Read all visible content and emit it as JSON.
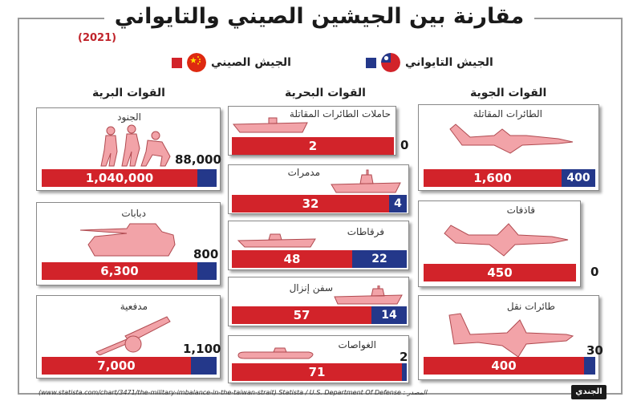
{
  "title": "مقارنة بين الجيشين الصيني والتايواني",
  "year": "(2021)",
  "legend": {
    "china": "الجيش الصيني",
    "taiwan": "الجيش التايواني"
  },
  "colors": {
    "china": "#d2232a",
    "taiwan": "#24388a",
    "silhouette": "#f2a3a8"
  },
  "sections": {
    "air": "القوات الجوية",
    "navy": "القوات البحرية",
    "land": "القوات البرية"
  },
  "chart_data": {
    "type": "bar",
    "series": [
      {
        "name": "الجيش الصيني"
      },
      {
        "name": "الجيش التايواني"
      }
    ],
    "items": [
      {
        "group": "القوات الجوية",
        "label": "الطائرات المقاتلة",
        "china": "1,600",
        "taiwan": "400",
        "icon": "fighter-jet-icon"
      },
      {
        "group": "القوات الجوية",
        "label": "قاذفات",
        "china": "450",
        "taiwan": "0",
        "icon": "bomber-icon"
      },
      {
        "group": "القوات الجوية",
        "label": "طائرات نقل",
        "china": "400",
        "taiwan": "30",
        "icon": "transport-plane-icon"
      },
      {
        "group": "القوات البحرية",
        "label": "حاملات الطائرات المقاتلة",
        "china": "2",
        "taiwan": "0",
        "icon": "aircraft-carrier-icon"
      },
      {
        "group": "القوات البحرية",
        "label": "مدمرات",
        "china": "32",
        "taiwan": "4",
        "icon": "destroyer-icon"
      },
      {
        "group": "القوات البحرية",
        "label": "فرقاطات",
        "china": "48",
        "taiwan": "22",
        "icon": "frigate-icon"
      },
      {
        "group": "القوات البحرية",
        "label": "سفن إنزال",
        "china": "57",
        "taiwan": "14",
        "icon": "landing-ship-icon"
      },
      {
        "group": "القوات البحرية",
        "label": "الغواصات",
        "china": "71",
        "taiwan": "2",
        "icon": "submarine-icon"
      },
      {
        "group": "القوات البرية",
        "label": "الجنود",
        "china": "1,040,000",
        "taiwan": "88,000",
        "icon": "soldiers-icon"
      },
      {
        "group": "القوات البرية",
        "label": "دبابات",
        "china": "6,300",
        "taiwan": "800",
        "icon": "tank-icon"
      },
      {
        "group": "القوات البرية",
        "label": "مدفعية",
        "china": "7,000",
        "taiwan": "1,100",
        "icon": "artillery-icon"
      }
    ]
  },
  "source": "(www.statista.com/chart/3471/the-military-imbalance-in-the-taiwan-strait) Statista / U.S. Department Of Defense : المصدر",
  "logo": "الجندي"
}
